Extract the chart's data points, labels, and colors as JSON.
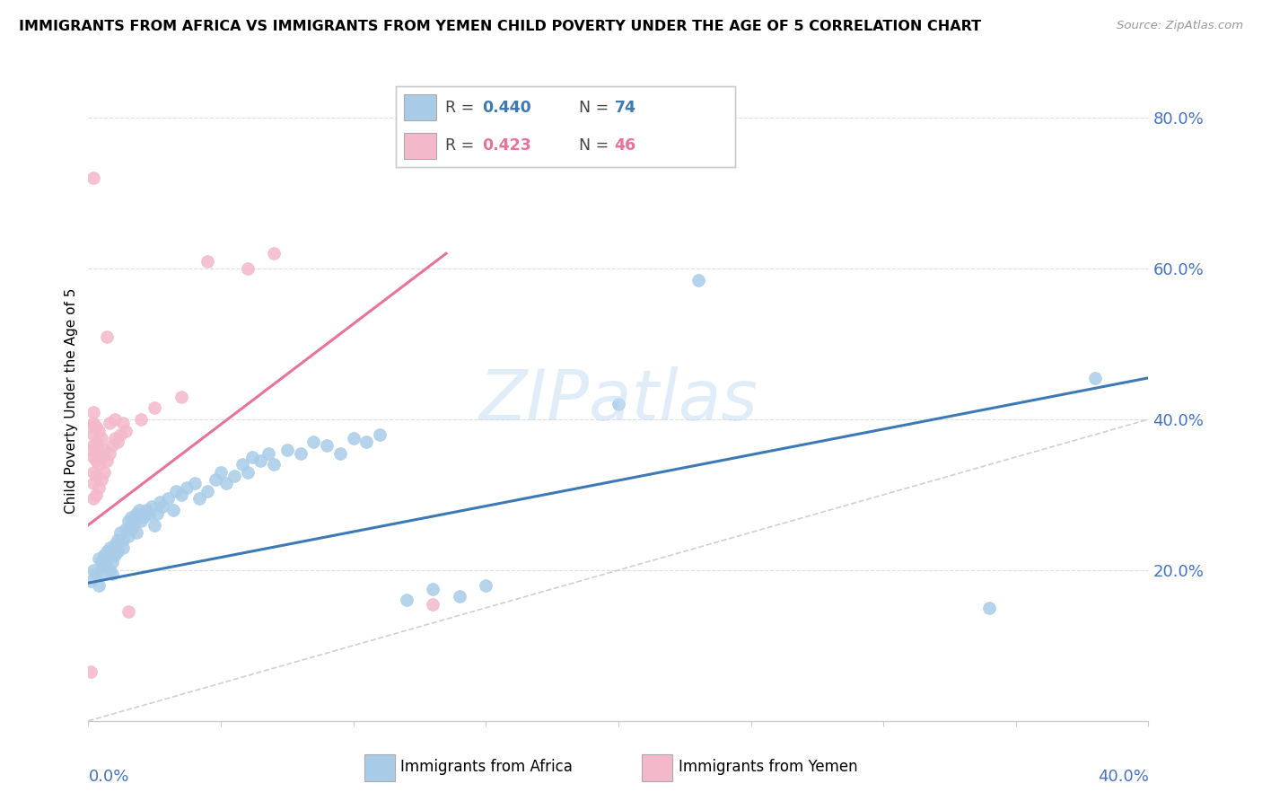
{
  "title": "IMMIGRANTS FROM AFRICA VS IMMIGRANTS FROM YEMEN CHILD POVERTY UNDER THE AGE OF 5 CORRELATION CHART",
  "source": "Source: ZipAtlas.com",
  "ylabel": "Child Poverty Under the Age of 5",
  "xlim": [
    0.0,
    0.4
  ],
  "ylim": [
    0.0,
    0.85
  ],
  "yticks": [
    0.2,
    0.4,
    0.6,
    0.8
  ],
  "ytick_labels": [
    "20.0%",
    "40.0%",
    "60.0%",
    "80.0%"
  ],
  "color_africa": "#a8cce8",
  "color_yemen": "#f4b8cb",
  "color_africa_line": "#3d7ab5",
  "color_yemen_line": "#e8729a",
  "color_diag_line": "#d0d0d0",
  "watermark": "ZIPatlas",
  "africa_scatter": [
    [
      0.001,
      0.185
    ],
    [
      0.002,
      0.2
    ],
    [
      0.003,
      0.195
    ],
    [
      0.004,
      0.215
    ],
    [
      0.004,
      0.18
    ],
    [
      0.005,
      0.21
    ],
    [
      0.005,
      0.195
    ],
    [
      0.006,
      0.22
    ],
    [
      0.006,
      0.205
    ],
    [
      0.007,
      0.225
    ],
    [
      0.007,
      0.215
    ],
    [
      0.008,
      0.2
    ],
    [
      0.008,
      0.23
    ],
    [
      0.009,
      0.195
    ],
    [
      0.009,
      0.21
    ],
    [
      0.01,
      0.22
    ],
    [
      0.01,
      0.235
    ],
    [
      0.011,
      0.24
    ],
    [
      0.011,
      0.225
    ],
    [
      0.012,
      0.25
    ],
    [
      0.013,
      0.24
    ],
    [
      0.013,
      0.23
    ],
    [
      0.014,
      0.255
    ],
    [
      0.015,
      0.265
    ],
    [
      0.015,
      0.245
    ],
    [
      0.016,
      0.27
    ],
    [
      0.016,
      0.255
    ],
    [
      0.017,
      0.26
    ],
    [
      0.018,
      0.275
    ],
    [
      0.018,
      0.25
    ],
    [
      0.019,
      0.28
    ],
    [
      0.02,
      0.265
    ],
    [
      0.021,
      0.27
    ],
    [
      0.022,
      0.28
    ],
    [
      0.023,
      0.275
    ],
    [
      0.024,
      0.285
    ],
    [
      0.025,
      0.26
    ],
    [
      0.026,
      0.275
    ],
    [
      0.027,
      0.29
    ],
    [
      0.028,
      0.285
    ],
    [
      0.03,
      0.295
    ],
    [
      0.032,
      0.28
    ],
    [
      0.033,
      0.305
    ],
    [
      0.035,
      0.3
    ],
    [
      0.037,
      0.31
    ],
    [
      0.04,
      0.315
    ],
    [
      0.042,
      0.295
    ],
    [
      0.045,
      0.305
    ],
    [
      0.048,
      0.32
    ],
    [
      0.05,
      0.33
    ],
    [
      0.052,
      0.315
    ],
    [
      0.055,
      0.325
    ],
    [
      0.058,
      0.34
    ],
    [
      0.06,
      0.33
    ],
    [
      0.062,
      0.35
    ],
    [
      0.065,
      0.345
    ],
    [
      0.068,
      0.355
    ],
    [
      0.07,
      0.34
    ],
    [
      0.075,
      0.36
    ],
    [
      0.08,
      0.355
    ],
    [
      0.085,
      0.37
    ],
    [
      0.09,
      0.365
    ],
    [
      0.095,
      0.355
    ],
    [
      0.1,
      0.375
    ],
    [
      0.105,
      0.37
    ],
    [
      0.11,
      0.38
    ],
    [
      0.12,
      0.16
    ],
    [
      0.13,
      0.175
    ],
    [
      0.14,
      0.165
    ],
    [
      0.15,
      0.18
    ],
    [
      0.2,
      0.42
    ],
    [
      0.23,
      0.585
    ],
    [
      0.34,
      0.15
    ],
    [
      0.38,
      0.455
    ]
  ],
  "yemen_scatter": [
    [
      0.001,
      0.065
    ],
    [
      0.001,
      0.39
    ],
    [
      0.001,
      0.36
    ],
    [
      0.002,
      0.295
    ],
    [
      0.002,
      0.315
    ],
    [
      0.002,
      0.33
    ],
    [
      0.002,
      0.35
    ],
    [
      0.002,
      0.365
    ],
    [
      0.002,
      0.38
    ],
    [
      0.002,
      0.395
    ],
    [
      0.002,
      0.41
    ],
    [
      0.003,
      0.3
    ],
    [
      0.003,
      0.325
    ],
    [
      0.003,
      0.345
    ],
    [
      0.003,
      0.37
    ],
    [
      0.003,
      0.39
    ],
    [
      0.004,
      0.31
    ],
    [
      0.004,
      0.34
    ],
    [
      0.004,
      0.36
    ],
    [
      0.004,
      0.385
    ],
    [
      0.005,
      0.32
    ],
    [
      0.005,
      0.35
    ],
    [
      0.005,
      0.375
    ],
    [
      0.006,
      0.33
    ],
    [
      0.006,
      0.36
    ],
    [
      0.007,
      0.345
    ],
    [
      0.007,
      0.51
    ],
    [
      0.008,
      0.355
    ],
    [
      0.008,
      0.395
    ],
    [
      0.009,
      0.365
    ],
    [
      0.01,
      0.375
    ],
    [
      0.01,
      0.4
    ],
    [
      0.011,
      0.37
    ],
    [
      0.012,
      0.38
    ],
    [
      0.013,
      0.395
    ],
    [
      0.014,
      0.385
    ],
    [
      0.015,
      0.145
    ],
    [
      0.02,
      0.4
    ],
    [
      0.025,
      0.415
    ],
    [
      0.035,
      0.43
    ],
    [
      0.045,
      0.61
    ],
    [
      0.06,
      0.6
    ],
    [
      0.07,
      0.62
    ],
    [
      0.002,
      0.72
    ],
    [
      0.13,
      0.155
    ]
  ]
}
